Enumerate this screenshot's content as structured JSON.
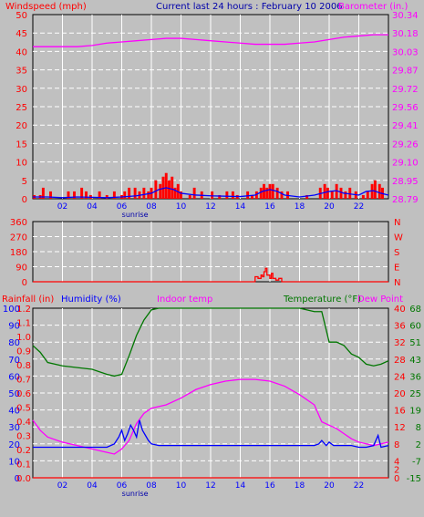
{
  "header": {
    "left_label": "Windspeed (mph)",
    "center_label": "Current last 24 hours : February 10 2006",
    "right_label": "Barometer (in.)"
  },
  "colors": {
    "background": "#c0c0c0",
    "plot_bg": "#c0c0c0",
    "grid": "#ffffff",
    "wind": "#ff0000",
    "wind_avg": "#0000ff",
    "barometer": "#ff00ff",
    "direction": "#ff0000",
    "rain": "#ff0000",
    "humidity": "#0000ff",
    "indoor_temp": "#ff00ff",
    "temperature": "#007700",
    "dew_point": "#ff00ff",
    "header_blue": "#0000aa",
    "tick_blue": "#0000ff"
  },
  "chart_data": [
    {
      "type": "bar",
      "name": "wind_barometer",
      "xlabel": "",
      "x_ticks": [
        "02",
        "04",
        "06",
        "08",
        "10",
        "12",
        "14",
        "16",
        "18",
        "20",
        "22"
      ],
      "x_annotation": "sunrise",
      "x_range_hours": [
        0,
        24
      ],
      "left_axis": {
        "label": "Windspeed (mph)",
        "ticks": [
          0,
          5,
          10,
          15,
          20,
          25,
          30,
          35,
          40,
          45,
          50
        ],
        "range": [
          0,
          50
        ]
      },
      "right_axis": {
        "label": "Barometer (in.)",
        "ticks": [
          "28.79",
          "28.95",
          "29.10",
          "29.26",
          "29.41",
          "29.56",
          "29.72",
          "29.87",
          "30.03",
          "30.18",
          "30.34"
        ],
        "range": [
          28.79,
          30.34
        ]
      },
      "grid": true,
      "series": [
        {
          "name": "Windspeed (mph)",
          "type": "bar",
          "x": [
            0.1,
            0.5,
            0.7,
            1.2,
            2.4,
            2.8,
            3.3,
            3.6,
            3.9,
            4.5,
            5.0,
            5.5,
            6.0,
            6.2,
            6.5,
            6.9,
            7.2,
            7.5,
            7.8,
            8.0,
            8.3,
            8.6,
            8.8,
            9.0,
            9.2,
            9.4,
            9.6,
            9.8,
            10.0,
            10.6,
            10.9,
            11.4,
            12.1,
            12.6,
            13.1,
            13.5,
            13.8,
            14.5,
            14.8,
            15.1,
            15.4,
            15.6,
            15.8,
            16.0,
            16.2,
            16.5,
            16.8,
            17.2,
            18.5,
            19.4,
            19.7,
            19.9,
            20.2,
            20.5,
            20.8,
            21.1,
            21.4,
            21.8,
            22.3,
            22.6,
            22.9,
            23.1,
            23.4,
            23.6
          ],
          "values": [
            1,
            1,
            3,
            2,
            2,
            2,
            3,
            2,
            1,
            2,
            1,
            2,
            1,
            2,
            3,
            3,
            2,
            3,
            2,
            3,
            5,
            4,
            6,
            7,
            5,
            6,
            3,
            4,
            2,
            1,
            3,
            2,
            2,
            1,
            2,
            2,
            1,
            2,
            1,
            2,
            3,
            4,
            3,
            4,
            4,
            3,
            2,
            2,
            1,
            3,
            4,
            3,
            2,
            4,
            3,
            2,
            3,
            2,
            1,
            2,
            4,
            5,
            4,
            3
          ]
        },
        {
          "name": "Wind average",
          "type": "line",
          "x": [
            0,
            1,
            2,
            3,
            4,
            5,
            6,
            7,
            8,
            8.5,
            9,
            9.5,
            10,
            11,
            12,
            13,
            14,
            15,
            15.5,
            16,
            16.5,
            17,
            18,
            19,
            20,
            20.5,
            21,
            22,
            22.5,
            23,
            23.5,
            24
          ],
          "values": [
            0.5,
            0.5,
            0.3,
            0.5,
            0.4,
            0.3,
            0.5,
            0.8,
            1.5,
            2.5,
            3,
            2.5,
            1.5,
            1,
            0.8,
            0.7,
            0.6,
            1,
            2,
            2.5,
            2,
            1,
            0.5,
            1,
            2,
            2.2,
            1.5,
            1,
            2,
            2.2,
            1.5,
            1
          ]
        },
        {
          "name": "Barometer (in.)",
          "type": "line",
          "x": [
            0,
            2,
            3,
            4,
            5,
            6,
            7,
            8,
            9,
            10,
            11,
            12,
            13,
            14,
            15,
            16,
            17,
            18,
            19,
            20,
            21,
            22,
            23,
            24
          ],
          "values": [
            30.07,
            30.07,
            30.07,
            30.08,
            30.1,
            30.11,
            30.12,
            30.13,
            30.14,
            30.14,
            30.13,
            30.12,
            30.11,
            30.1,
            30.09,
            30.09,
            30.09,
            30.1,
            30.11,
            30.13,
            30.15,
            30.16,
            30.17,
            30.17
          ]
        }
      ]
    },
    {
      "type": "line",
      "name": "wind_direction",
      "x_range_hours": [
        0,
        24
      ],
      "left_axis": {
        "ticks": [
          0,
          90,
          180,
          270,
          360
        ],
        "range": [
          0,
          360
        ]
      },
      "right_axis": {
        "ticks": [
          "N",
          "E",
          "S",
          "W",
          "N"
        ]
      },
      "grid": true,
      "series": [
        {
          "name": "Wind direction",
          "x": [
            0,
            14.8,
            15.0,
            15.2,
            15.4,
            15.5,
            15.6,
            15.7,
            15.8,
            16.0,
            16.1,
            16.2,
            16.4,
            16.6,
            16.8,
            17.0,
            24
          ],
          "values": [
            0,
            0,
            30,
            20,
            40,
            30,
            60,
            80,
            40,
            20,
            50,
            20,
            10,
            20,
            0,
            0,
            0
          ]
        }
      ]
    },
    {
      "type": "line",
      "name": "rain_humidity_temp",
      "x_ticks": [
        "02",
        "04",
        "06",
        "08",
        "10",
        "12",
        "14",
        "16",
        "18",
        "20",
        "22"
      ],
      "x_annotation": "sunrise",
      "x_range_hours": [
        0,
        24
      ],
      "labels": [
        "Rainfall (in)",
        "Humidity (%)",
        "Indoor temp",
        "Temperature (°F)",
        "Dew Point"
      ],
      "axes": {
        "humidity": {
          "ticks": [
            0,
            10,
            20,
            30,
            40,
            50,
            60,
            70,
            80,
            90,
            100
          ],
          "range": [
            0,
            100
          ]
        },
        "rainfall": {
          "ticks": [
            "0.0",
            "0.1",
            "0.2",
            "0.3",
            "0.4",
            "0.5",
            "0.6",
            "0.7",
            "0.8",
            "0.9",
            "1.0",
            "1.1",
            "1.2"
          ],
          "range": [
            0,
            1.2
          ]
        },
        "temp_c": {
          "ticks": [
            0,
            2,
            4,
            6,
            8,
            10,
            12,
            14,
            16,
            18,
            20,
            22,
            24,
            26,
            28,
            30,
            32,
            34,
            36,
            38,
            40
          ],
          "labels_shown": [
            "0",
            "2",
            "4",
            "8",
            "12",
            "16",
            "20",
            "24",
            "28",
            "32",
            "36",
            "40"
          ],
          "range": [
            0,
            40
          ]
        },
        "temp_f": {
          "labels": [
            "-15",
            "-7",
            "2",
            "8",
            "19",
            "25",
            "36",
            "43",
            "51",
            "60",
            "68"
          ]
        }
      },
      "grid": true,
      "series": [
        {
          "name": "Temperature (°F)",
          "axis": "humidity",
          "x": [
            0,
            0.5,
            1,
            2,
            3,
            4,
            5,
            5.5,
            6,
            6.5,
            7,
            7.5,
            8,
            8.5,
            9,
            10,
            10.2,
            17.5,
            18,
            18.5,
            19,
            19.5,
            20,
            20.5,
            21,
            21.5,
            22,
            22.5,
            23,
            23.5,
            24
          ],
          "values": [
            78,
            74,
            68,
            66,
            65,
            64,
            61,
            60,
            61,
            72,
            84,
            93,
            99,
            103,
            107,
            111,
            112,
            112,
            103,
            99,
            98,
            98,
            80,
            80,
            78,
            73,
            71,
            67,
            66,
            67,
            69
          ]
        },
        {
          "name": "Indoor temp",
          "axis": "humidity",
          "x": [
            0,
            0.5,
            1,
            2,
            3,
            4,
            5,
            5.5,
            6,
            6.5,
            7,
            7.5,
            8,
            9,
            10,
            11,
            12,
            13,
            14,
            15,
            16,
            17,
            18,
            19,
            19.5,
            20,
            20.5,
            21,
            21.5,
            22,
            22.5,
            23,
            23.5,
            24
          ],
          "values": [
            34,
            28,
            24,
            21,
            19,
            17,
            15,
            14,
            17,
            22,
            32,
            38,
            41,
            43,
            47,
            52,
            55,
            57,
            58,
            58,
            57,
            54,
            49,
            43,
            33,
            31,
            29,
            26,
            23,
            21,
            20,
            19,
            20,
            21
          ]
        },
        {
          "name": "Humidity (%)",
          "axis": "humidity",
          "x": [
            0,
            4,
            5,
            5.5,
            5.8,
            6.0,
            6.2,
            6.4,
            6.6,
            6.8,
            7.0,
            7.2,
            7.4,
            7.6,
            7.8,
            8.0,
            8.5,
            19.0,
            19.3,
            19.5,
            19.8,
            20.0,
            20.3,
            21.5,
            22,
            22.5,
            23,
            23.3,
            23.5,
            24
          ],
          "values": [
            18,
            18,
            18,
            20,
            24,
            28,
            22,
            26,
            31,
            28,
            24,
            34,
            28,
            25,
            22,
            20,
            19,
            19,
            20,
            22,
            19,
            21,
            19,
            19,
            18,
            18,
            19,
            25,
            18,
            19
          ]
        },
        {
          "name": "Rainfall (in)",
          "axis": "rainfall",
          "x": [
            0,
            24
          ],
          "values": [
            0,
            0
          ]
        }
      ]
    }
  ]
}
